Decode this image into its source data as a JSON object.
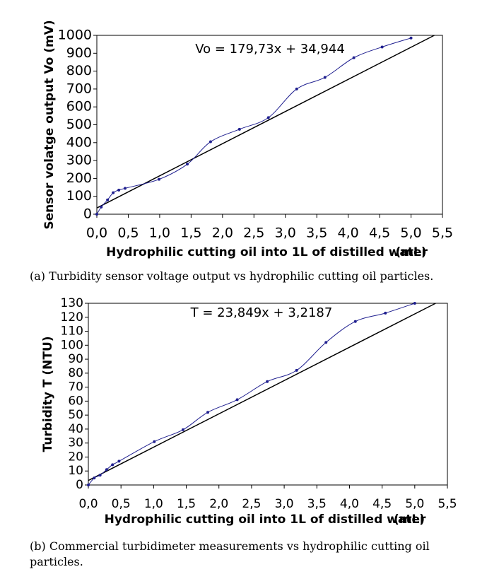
{
  "chart_data": [
    {
      "type": "line",
      "y_label": "Sensor volatge output Vo (mV)",
      "x_label": "Hydrophilic cutting oil into 1L of distilled water",
      "x_unit": "(mL)",
      "annotation": "Vo = 179,73x + 34,944",
      "x": [
        0,
        0.07,
        0.17,
        0.26,
        0.35,
        0.45,
        0.99,
        1.44,
        1.81,
        2.27,
        2.73,
        3.18,
        3.63,
        4.09,
        4.54,
        5.0
      ],
      "values": [
        0,
        40,
        80,
        120,
        135,
        145,
        195,
        280,
        405,
        475,
        540,
        700,
        765,
        875,
        935,
        985
      ],
      "color": "#1f1f8f",
      "trendline": {
        "x": [
          0,
          5.37
        ],
        "values": [
          34.944,
          1000
        ],
        "color": "#000000"
      },
      "xlim": [
        0,
        5.5
      ],
      "xticks": [
        {
          "value": 0,
          "label": "0,0"
        },
        {
          "value": 0.5,
          "label": "0,5"
        },
        {
          "value": 1,
          "label": "1,0"
        },
        {
          "value": 1.5,
          "label": "1,5"
        },
        {
          "value": 2,
          "label": "2,0"
        },
        {
          "value": 2.5,
          "label": "2,5"
        },
        {
          "value": 3,
          "label": "3,0"
        },
        {
          "value": 3.5,
          "label": "3,5"
        },
        {
          "value": 4,
          "label": "4,0"
        },
        {
          "value": 4.5,
          "label": "4,5"
        },
        {
          "value": 5,
          "label": "5,0"
        },
        {
          "value": 5.5,
          "label": "5,5"
        }
      ],
      "ylim": [
        0,
        1000
      ],
      "yticks": [
        0,
        100,
        200,
        300,
        400,
        500,
        600,
        700,
        800,
        900,
        1000
      ],
      "caption": "(a) Turbidity sensor voltage output vs hydrophilic cutting oil particles."
    },
    {
      "type": "line",
      "y_label": "Turbidity T (NTU)",
      "x_label": "Hydrophilic cutting oil into 1L of distilled water",
      "x_unit": "(mL)",
      "annotation": "T = 23,849x + 3,2187",
      "x": [
        0,
        0.09,
        0.18,
        0.28,
        0.37,
        0.47,
        1.01,
        1.45,
        1.83,
        2.28,
        2.74,
        3.19,
        3.64,
        4.09,
        4.55,
        5.0
      ],
      "values": [
        0,
        5,
        7,
        11,
        14.5,
        17,
        31,
        39.5,
        52,
        61,
        74,
        82,
        102,
        117,
        123,
        130
      ],
      "color": "#1f1f8f",
      "trendline": {
        "x": [
          0,
          5.32
        ],
        "values": [
          3.2187,
          130
        ],
        "color": "#000000"
      },
      "xlim": [
        0,
        5.5
      ],
      "xticks": [
        {
          "value": 0,
          "label": "0,0"
        },
        {
          "value": 0.5,
          "label": "0,5"
        },
        {
          "value": 1,
          "label": "1,0"
        },
        {
          "value": 1.5,
          "label": "1,5"
        },
        {
          "value": 2,
          "label": "2,0"
        },
        {
          "value": 2.5,
          "label": "2,5"
        },
        {
          "value": 3,
          "label": "3,0"
        },
        {
          "value": 3.5,
          "label": "3,5"
        },
        {
          "value": 4,
          "label": "4,0"
        },
        {
          "value": 4.5,
          "label": "4,5"
        },
        {
          "value": 5,
          "label": "5,0"
        },
        {
          "value": 5.5,
          "label": "5,5"
        }
      ],
      "ylim": [
        0,
        130
      ],
      "yticks": [
        0,
        10,
        20,
        30,
        40,
        50,
        60,
        70,
        80,
        90,
        100,
        110,
        120,
        130
      ],
      "caption": "(b) Commercial turbidimeter measurements vs hydrophilic cutting oil particles."
    }
  ]
}
